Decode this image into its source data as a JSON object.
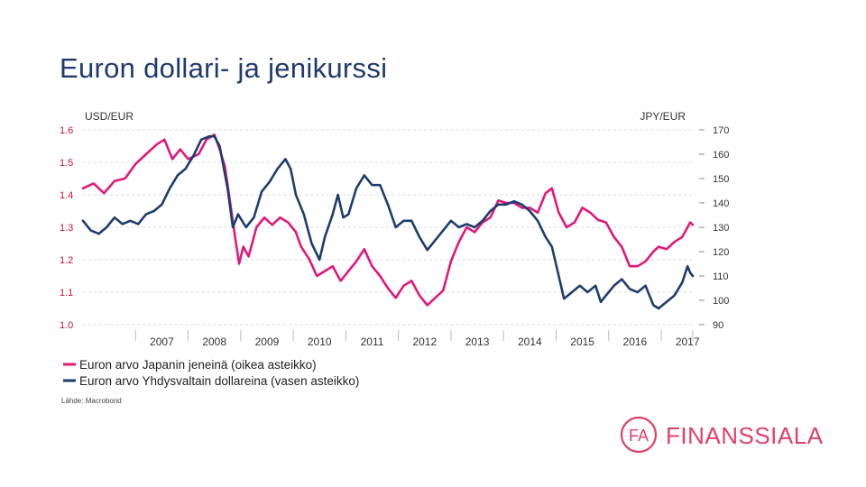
{
  "slide": {
    "title": "Euron dollari- ja jenikurssi"
  },
  "source": "Lähde: Macrobond",
  "logo": {
    "mark": "FA",
    "name": "FINANSSIALA"
  },
  "colors": {
    "title": "#1f3b6e",
    "jpy_series": "#e0187a",
    "usd_series": "#1d3d6f",
    "brand": "#e23f68",
    "grid": "#d9d9d9",
    "left_ticks": "#c8102e"
  },
  "chart_data": {
    "type": "line",
    "ylabel_left": "USD/EUR",
    "ylabel_right": "JPY/EUR",
    "ylim_left": [
      1.0,
      1.6
    ],
    "ylim_right": [
      90,
      170
    ],
    "yticks_left": [
      "1.6",
      "1.5",
      "1.4",
      "1.3",
      "1.2",
      "1.1",
      "1.0"
    ],
    "yticks_right": [
      "170",
      "160",
      "150",
      "140",
      "130",
      "120",
      "110",
      "100",
      "90"
    ],
    "x_tick_labels": [
      "2007",
      "2008",
      "2009",
      "2010",
      "2011",
      "2012",
      "2013",
      "2014",
      "2015",
      "2016",
      "2017"
    ],
    "xlim": [
      2006.0,
      2017.6
    ],
    "grid": true,
    "legend_position": "bottom",
    "series": [
      {
        "name": "Euron arvo Japanin jeneinä (oikea asteikko)",
        "axis": "right",
        "points": [
          [
            2006.0,
            146
          ],
          [
            2006.2,
            148
          ],
          [
            2006.4,
            144
          ],
          [
            2006.6,
            149
          ],
          [
            2006.8,
            150
          ],
          [
            2007.0,
            156
          ],
          [
            2007.2,
            160
          ],
          [
            2007.4,
            164
          ],
          [
            2007.55,
            166
          ],
          [
            2007.7,
            158
          ],
          [
            2007.85,
            162
          ],
          [
            2008.0,
            158
          ],
          [
            2008.2,
            160
          ],
          [
            2008.35,
            166
          ],
          [
            2008.5,
            168
          ],
          [
            2008.6,
            162
          ],
          [
            2008.7,
            155
          ],
          [
            2008.8,
            140
          ],
          [
            2008.9,
            125
          ],
          [
            2008.97,
            115
          ],
          [
            2009.05,
            122
          ],
          [
            2009.15,
            118
          ],
          [
            2009.3,
            130
          ],
          [
            2009.45,
            134
          ],
          [
            2009.6,
            131
          ],
          [
            2009.75,
            134
          ],
          [
            2009.9,
            132
          ],
          [
            2010.05,
            128
          ],
          [
            2010.15,
            122
          ],
          [
            2010.3,
            117
          ],
          [
            2010.45,
            110
          ],
          [
            2010.6,
            112
          ],
          [
            2010.75,
            114
          ],
          [
            2010.9,
            108
          ],
          [
            2011.05,
            112
          ],
          [
            2011.2,
            116
          ],
          [
            2011.35,
            121
          ],
          [
            2011.5,
            114
          ],
          [
            2011.65,
            110
          ],
          [
            2011.8,
            105
          ],
          [
            2011.95,
            101
          ],
          [
            2012.1,
            106
          ],
          [
            2012.25,
            108
          ],
          [
            2012.4,
            102
          ],
          [
            2012.55,
            98
          ],
          [
            2012.7,
            101
          ],
          [
            2012.85,
            104
          ],
          [
            2013.0,
            116
          ],
          [
            2013.15,
            124
          ],
          [
            2013.3,
            130
          ],
          [
            2013.45,
            128
          ],
          [
            2013.6,
            132
          ],
          [
            2013.75,
            134
          ],
          [
            2013.9,
            141
          ],
          [
            2014.05,
            140
          ],
          [
            2014.2,
            140
          ],
          [
            2014.35,
            138
          ],
          [
            2014.5,
            138
          ],
          [
            2014.65,
            136
          ],
          [
            2014.8,
            144
          ],
          [
            2014.92,
            146
          ],
          [
            2015.05,
            136
          ],
          [
            2015.2,
            130
          ],
          [
            2015.35,
            132
          ],
          [
            2015.5,
            138
          ],
          [
            2015.65,
            136
          ],
          [
            2015.8,
            133
          ],
          [
            2015.95,
            132
          ],
          [
            2016.1,
            126
          ],
          [
            2016.25,
            122
          ],
          [
            2016.4,
            114
          ],
          [
            2016.55,
            114
          ],
          [
            2016.7,
            116
          ],
          [
            2016.85,
            120
          ],
          [
            2016.95,
            122
          ],
          [
            2017.1,
            121
          ],
          [
            2017.25,
            124
          ],
          [
            2017.4,
            126
          ],
          [
            2017.55,
            132
          ],
          [
            2017.6,
            131
          ]
        ]
      },
      {
        "name": "Euron arvo Yhdysvaltain dollareina (vasen asteikko)",
        "axis": "left",
        "points": [
          [
            2006.0,
            1.32
          ],
          [
            2006.15,
            1.29
          ],
          [
            2006.3,
            1.28
          ],
          [
            2006.45,
            1.3
          ],
          [
            2006.6,
            1.33
          ],
          [
            2006.75,
            1.31
          ],
          [
            2006.9,
            1.32
          ],
          [
            2007.05,
            1.31
          ],
          [
            2007.2,
            1.34
          ],
          [
            2007.35,
            1.35
          ],
          [
            2007.5,
            1.37
          ],
          [
            2007.65,
            1.42
          ],
          [
            2007.8,
            1.46
          ],
          [
            2007.95,
            1.48
          ],
          [
            2008.1,
            1.52
          ],
          [
            2008.25,
            1.57
          ],
          [
            2008.4,
            1.58
          ],
          [
            2008.5,
            1.58
          ],
          [
            2008.6,
            1.55
          ],
          [
            2008.75,
            1.42
          ],
          [
            2008.85,
            1.3
          ],
          [
            2008.95,
            1.34
          ],
          [
            2009.1,
            1.3
          ],
          [
            2009.25,
            1.33
          ],
          [
            2009.4,
            1.41
          ],
          [
            2009.55,
            1.44
          ],
          [
            2009.7,
            1.48
          ],
          [
            2009.85,
            1.51
          ],
          [
            2009.95,
            1.48
          ],
          [
            2010.05,
            1.4
          ],
          [
            2010.2,
            1.34
          ],
          [
            2010.35,
            1.25
          ],
          [
            2010.5,
            1.2
          ],
          [
            2010.6,
            1.27
          ],
          [
            2010.75,
            1.34
          ],
          [
            2010.85,
            1.4
          ],
          [
            2010.95,
            1.33
          ],
          [
            2011.05,
            1.34
          ],
          [
            2011.2,
            1.42
          ],
          [
            2011.35,
            1.46
          ],
          [
            2011.5,
            1.43
          ],
          [
            2011.65,
            1.43
          ],
          [
            2011.8,
            1.37
          ],
          [
            2011.95,
            1.3
          ],
          [
            2012.1,
            1.32
          ],
          [
            2012.25,
            1.32
          ],
          [
            2012.4,
            1.27
          ],
          [
            2012.55,
            1.23
          ],
          [
            2012.7,
            1.26
          ],
          [
            2012.85,
            1.29
          ],
          [
            2013.0,
            1.32
          ],
          [
            2013.15,
            1.3
          ],
          [
            2013.3,
            1.31
          ],
          [
            2013.45,
            1.3
          ],
          [
            2013.6,
            1.32
          ],
          [
            2013.75,
            1.35
          ],
          [
            2013.9,
            1.37
          ],
          [
            2014.05,
            1.37
          ],
          [
            2014.2,
            1.38
          ],
          [
            2014.35,
            1.37
          ],
          [
            2014.5,
            1.35
          ],
          [
            2014.65,
            1.32
          ],
          [
            2014.8,
            1.27
          ],
          [
            2014.92,
            1.24
          ],
          [
            2015.05,
            1.15
          ],
          [
            2015.15,
            1.08
          ],
          [
            2015.3,
            1.1
          ],
          [
            2015.45,
            1.12
          ],
          [
            2015.6,
            1.1
          ],
          [
            2015.75,
            1.12
          ],
          [
            2015.85,
            1.07
          ],
          [
            2015.95,
            1.09
          ],
          [
            2016.1,
            1.12
          ],
          [
            2016.25,
            1.14
          ],
          [
            2016.4,
            1.11
          ],
          [
            2016.55,
            1.1
          ],
          [
            2016.7,
            1.12
          ],
          [
            2016.85,
            1.06
          ],
          [
            2016.95,
            1.05
          ],
          [
            2017.1,
            1.07
          ],
          [
            2017.25,
            1.09
          ],
          [
            2017.4,
            1.13
          ],
          [
            2017.5,
            1.18
          ],
          [
            2017.55,
            1.16
          ],
          [
            2017.6,
            1.15
          ]
        ]
      }
    ]
  }
}
